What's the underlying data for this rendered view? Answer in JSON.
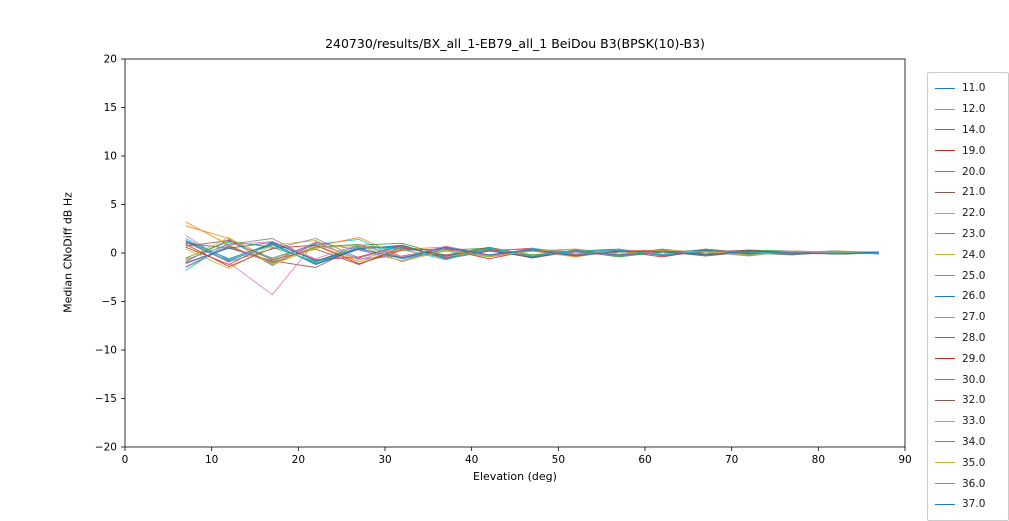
{
  "figure": {
    "title": "240730/results/BX_all_1-EB79_all_1 BeiDou B3(BPSK(10)-B3)",
    "xlabel": "Elevation (deg)",
    "ylabel": "Median CNoDiff dB Hz"
  },
  "chart_data": {
    "type": "line",
    "title": "240730/results/BX_all_1-EB79_all_1 BeiDou B3(BPSK(10)-B3)",
    "xlabel": "Elevation (deg)",
    "ylabel": "Median CNoDiff dB Hz",
    "xlim": [
      0,
      90
    ],
    "ylim": [
      -20,
      20
    ],
    "xticks": [
      0,
      10,
      20,
      30,
      40,
      50,
      60,
      70,
      80,
      90
    ],
    "xtick_labels": [
      "0",
      "10",
      "20",
      "30",
      "40",
      "50",
      "60",
      "70",
      "80",
      "90"
    ],
    "yticks": [
      -20,
      -15,
      -10,
      -5,
      0,
      5,
      10,
      15,
      20
    ],
    "ytick_labels": [
      "−20",
      "−15",
      "−10",
      "−5",
      "0",
      "5",
      "10",
      "15",
      "20"
    ],
    "grid": false,
    "legend_position": "right-outside",
    "x": [
      7,
      12,
      17,
      22,
      27,
      32,
      37,
      42,
      47,
      52,
      57,
      62,
      67,
      72,
      77,
      82,
      87
    ],
    "series": [
      {
        "name": "11.0",
        "color": "#1f77b4",
        "values": [
          1.2,
          -0.8,
          0.9,
          -1.1,
          0.5,
          0.7,
          -0.4,
          0.3,
          -0.5,
          0.2,
          0.4,
          -0.3,
          0.2,
          -0.2,
          0.1,
          0.2,
          0.0
        ]
      },
      {
        "name": "12.0",
        "color": "#ff7f0e",
        "values": [
          2.8,
          1.5,
          -0.6,
          0.8,
          -0.9,
          0.4,
          0.6,
          -0.3,
          0.4,
          -0.2,
          0.3,
          0.1,
          -0.3,
          0.2,
          -0.1,
          0.1,
          0.1
        ]
      },
      {
        "name": "14.0",
        "color": "#2ca02c",
        "values": [
          -1.5,
          0.7,
          -1.0,
          0.6,
          0.9,
          -0.5,
          0.3,
          0.5,
          -0.4,
          0.3,
          -0.2,
          0.4,
          -0.1,
          0.3,
          0.2,
          -0.1,
          0.0
        ]
      },
      {
        "name": "19.0",
        "color": "#d62728",
        "values": [
          0.6,
          -1.2,
          1.1,
          -0.7,
          -0.4,
          0.8,
          -0.6,
          0.2,
          0.5,
          -0.3,
          0.2,
          -0.4,
          0.3,
          -0.1,
          0.1,
          0.0,
          0.1
        ]
      },
      {
        "name": "20.0",
        "color": "#9467bd",
        "values": [
          -0.9,
          1.4,
          -1.3,
          1.0,
          -0.6,
          -0.3,
          0.5,
          -0.4,
          0.2,
          0.4,
          -0.3,
          0.2,
          0.1,
          -0.3,
          0.2,
          0.1,
          -0.1
        ]
      },
      {
        "name": "21.0",
        "color": "#8c564b",
        "values": [
          1.0,
          0.5,
          -0.8,
          -1.5,
          0.7,
          0.5,
          -0.2,
          0.6,
          -0.3,
          0.1,
          0.3,
          -0.2,
          0.4,
          0.0,
          -0.2,
          0.1,
          0.0
        ]
      },
      {
        "name": "22.0",
        "color": "#e377c2",
        "values": [
          1.8,
          -1.0,
          -4.3,
          1.2,
          -0.7,
          0.6,
          -0.4,
          0.3,
          -0.3,
          0.2,
          -0.2,
          0.3,
          0.1,
          -0.2,
          0.1,
          0.1,
          0.0
        ]
      },
      {
        "name": "23.0",
        "color": "#7f7f7f",
        "values": [
          -0.7,
          0.9,
          1.5,
          -0.8,
          0.5,
          -0.6,
          0.7,
          -0.2,
          0.4,
          -0.3,
          0.1,
          0.2,
          -0.3,
          0.1,
          0.2,
          -0.1,
          0.0
        ]
      },
      {
        "name": "24.0",
        "color": "#bcbd22",
        "values": [
          0.4,
          -1.6,
          0.8,
          1.3,
          -0.9,
          0.3,
          -0.5,
          0.4,
          -0.2,
          0.3,
          0.2,
          -0.1,
          0.2,
          -0.2,
          0.0,
          0.1,
          0.1
        ]
      },
      {
        "name": "25.0",
        "color": "#17becf",
        "values": [
          -1.8,
          1.1,
          -0.5,
          0.9,
          1.4,
          -0.6,
          0.2,
          -0.4,
          0.5,
          -0.1,
          0.3,
          -0.2,
          0.1,
          0.2,
          -0.1,
          0.0,
          0.0
        ]
      },
      {
        "name": "26.0",
        "color": "#1f77b4",
        "values": [
          1.3,
          -0.6,
          1.0,
          -1.2,
          0.4,
          0.8,
          -0.5,
          0.2,
          -0.4,
          0.3,
          -0.2,
          0.1,
          0.3,
          -0.1,
          0.1,
          -0.1,
          0.0
        ]
      },
      {
        "name": "27.0",
        "color": "#ff7f0e",
        "values": [
          3.2,
          0.8,
          -1.1,
          0.7,
          1.6,
          -0.4,
          0.6,
          -0.3,
          0.2,
          -0.4,
          0.3,
          0.2,
          -0.1,
          0.1,
          0.0,
          0.2,
          0.1
        ]
      },
      {
        "name": "28.0",
        "color": "#2ca02c",
        "values": [
          -0.5,
          1.2,
          0.6,
          -0.9,
          0.8,
          1.0,
          -0.3,
          0.5,
          -0.2,
          0.2,
          -0.4,
          0.1,
          0.2,
          0.0,
          -0.1,
          0.1,
          0.0
        ]
      },
      {
        "name": "29.0",
        "color": "#d62728",
        "values": [
          0.9,
          -1.4,
          0.5,
          0.8,
          -1.1,
          0.3,
          0.4,
          -0.6,
          0.3,
          -0.2,
          0.1,
          0.3,
          -0.2,
          0.2,
          0.1,
          0.0,
          0.1
        ]
      },
      {
        "name": "30.0",
        "color": "#9467bd",
        "values": [
          -1.1,
          0.6,
          -0.9,
          1.1,
          0.3,
          -0.8,
          0.5,
          -0.2,
          0.4,
          0.1,
          -0.3,
          0.2,
          -0.1,
          0.1,
          0.2,
          -0.1,
          0.0
        ]
      },
      {
        "name": "32.0",
        "color": "#8c564b",
        "values": [
          0.7,
          1.3,
          -0.7,
          0.4,
          -1.2,
          0.6,
          -0.3,
          0.4,
          -0.5,
          0.3,
          0.2,
          -0.2,
          0.1,
          0.3,
          -0.1,
          0.1,
          0.0
        ]
      },
      {
        "name": "33.0",
        "color": "#e377c2",
        "values": [
          -1.4,
          0.8,
          1.2,
          -0.6,
          0.9,
          -0.4,
          0.7,
          -0.3,
          0.2,
          -0.3,
          0.4,
          -0.1,
          0.2,
          -0.2,
          0.1,
          0.0,
          0.1
        ]
      },
      {
        "name": "34.0",
        "color": "#7f7f7f",
        "values": [
          1.1,
          -0.9,
          0.4,
          1.5,
          -0.5,
          0.7,
          -0.6,
          0.3,
          0.4,
          -0.2,
          0.1,
          0.2,
          -0.3,
          0.1,
          0.0,
          0.2,
          0.0
        ]
      },
      {
        "name": "35.0",
        "color": "#bcbd22",
        "values": [
          -0.6,
          1.6,
          -1.2,
          0.5,
          0.8,
          -0.9,
          0.3,
          -0.4,
          0.2,
          0.4,
          -0.1,
          0.3,
          0.1,
          -0.2,
          0.2,
          0.1,
          0.1
        ]
      },
      {
        "name": "36.0",
        "color": "#17becf",
        "values": [
          1.5,
          -0.7,
          0.8,
          -1.0,
          0.6,
          0.4,
          -0.7,
          0.5,
          -0.3,
          0.2,
          0.3,
          -0.2,
          0.2,
          0.1,
          -0.1,
          0.0,
          0.0
        ]
      },
      {
        "name": "37.0",
        "color": "#1f77b4",
        "values": [
          -1.0,
          0.5,
          1.1,
          -0.8,
          0.4,
          -0.5,
          0.6,
          -0.2,
          0.3,
          -0.3,
          0.2,
          0.1,
          -0.2,
          0.2,
          0.0,
          -0.1,
          0.1
        ]
      }
    ]
  }
}
